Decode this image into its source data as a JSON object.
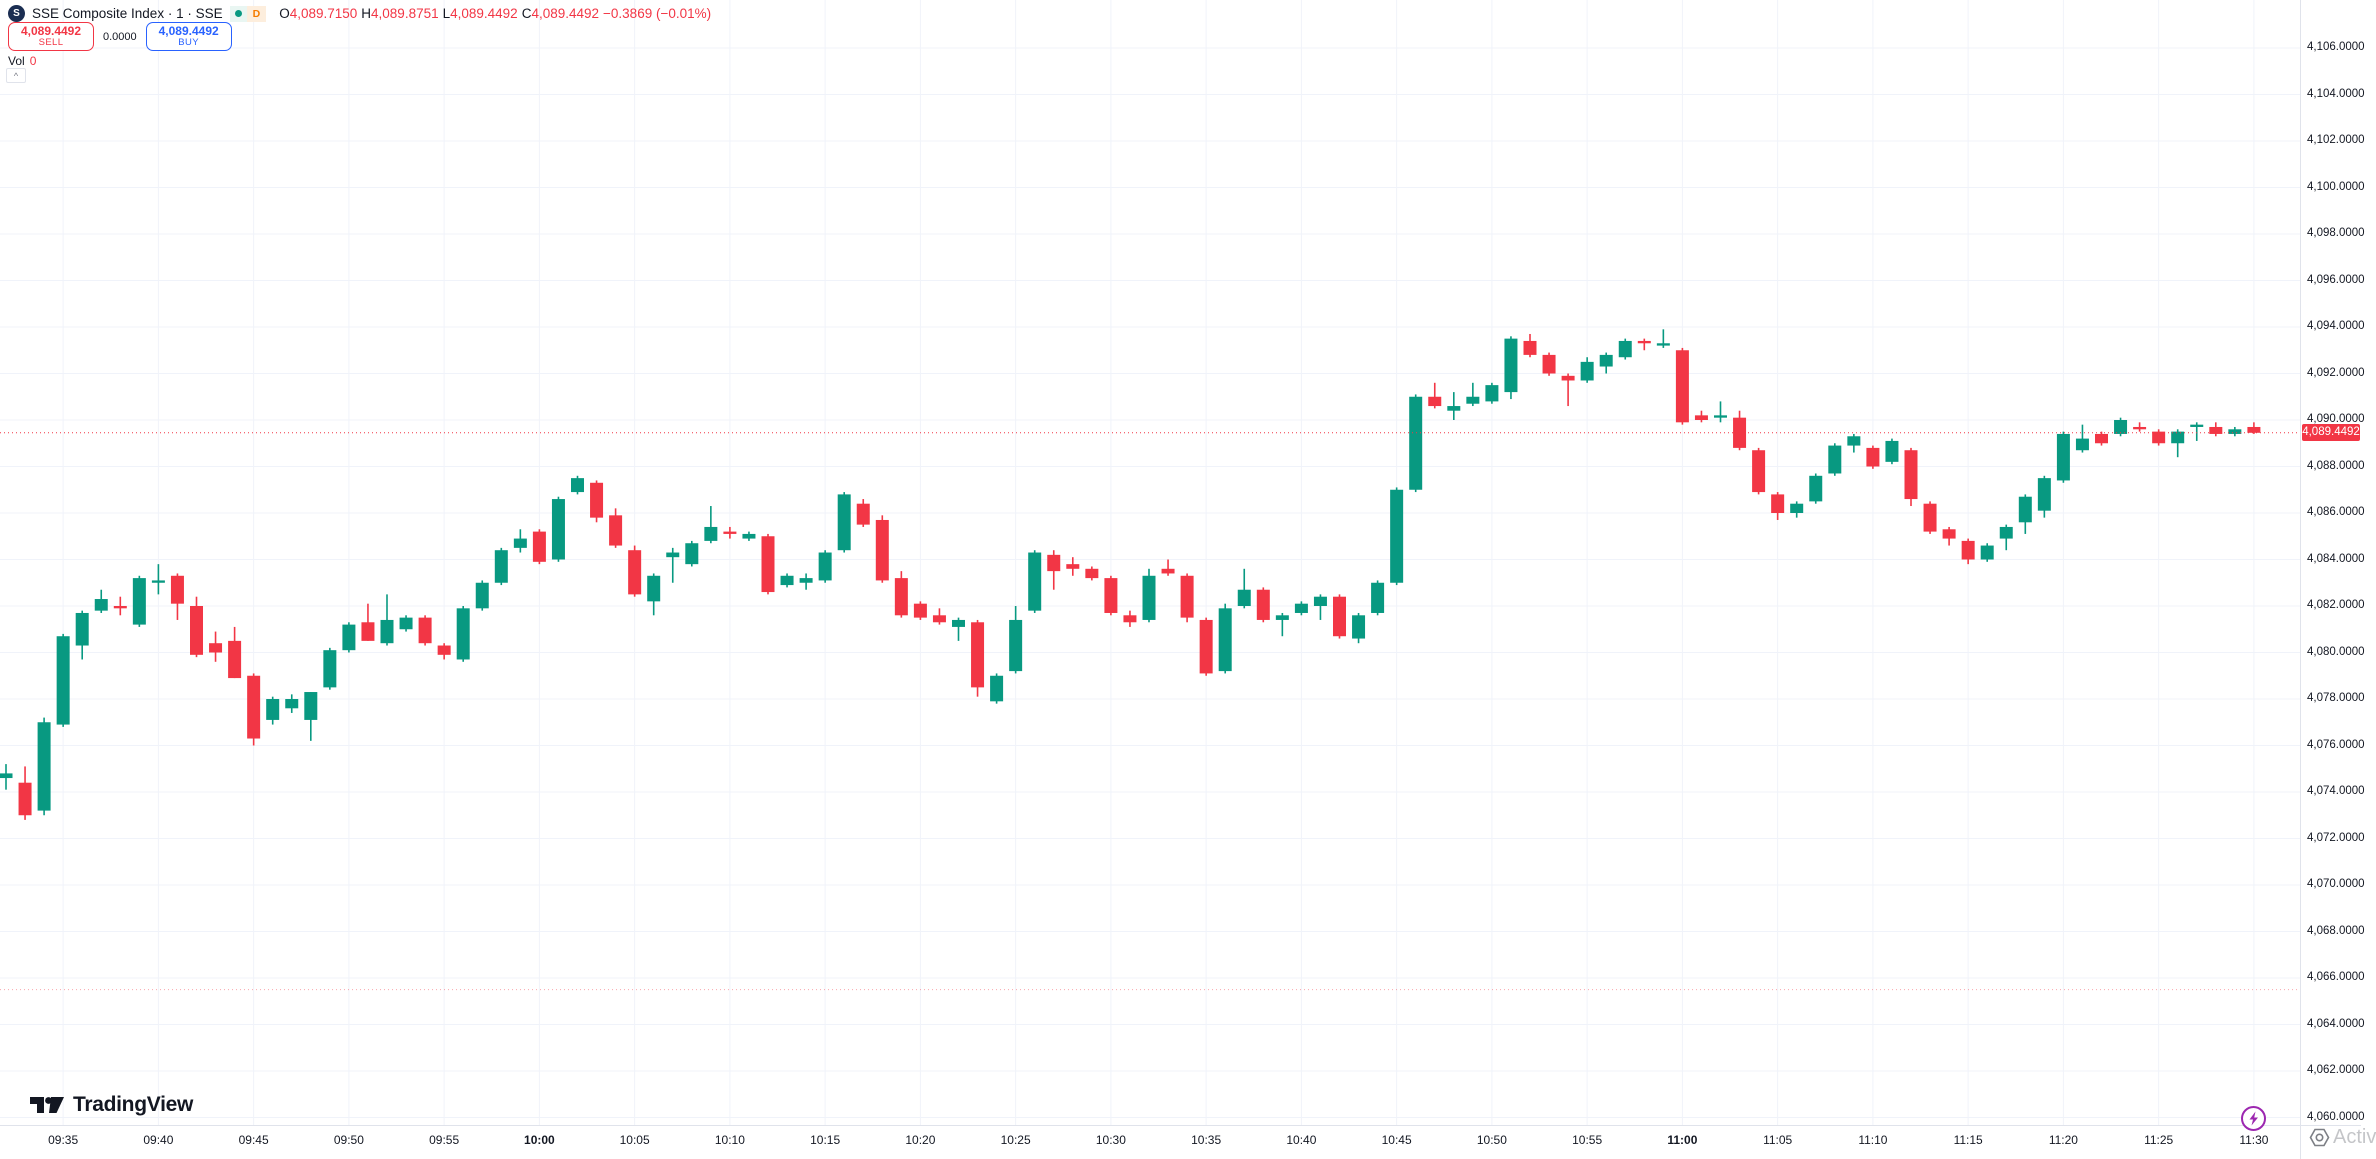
{
  "header": {
    "title": "SSE Composite Index · 1 · SSE",
    "symbol_logo_letter": "S",
    "market_status_color": "#089981",
    "data_mode_badge": "D",
    "ohlc": {
      "o_label": "O",
      "o": "4,089.7150",
      "h_label": "H",
      "h": "4,089.8751",
      "l_label": "L",
      "l": "4,089.4492",
      "c_label": "C",
      "c": "4,089.4492",
      "change": "−0.3869 (−0.01%)",
      "value_color": "#f23645"
    }
  },
  "trade_panel": {
    "sell_price": "4,089.4492",
    "sell_label": "SELL",
    "spread": "0.0000",
    "buy_price": "4,089.4492",
    "buy_label": "BUY",
    "sell_color": "#f23645",
    "buy_color": "#2962ff"
  },
  "volume": {
    "label": "Vol",
    "value": "0"
  },
  "footer": {
    "logo_text": "TradingView"
  },
  "flash_button_color": "#9c27b0",
  "watermark": {
    "text": "Activ"
  },
  "chart_data": {
    "type": "candlestick",
    "title": "SSE Composite Index",
    "interval": "1",
    "up_color": "#089981",
    "down_color": "#f23645",
    "grid_color": "#f0f3fa",
    "current_price": 4089.4492,
    "current_price_label": "4,089.4492",
    "current_price_line_color": "#f23645",
    "secondary_price_line": 4065.5,
    "y_axis": {
      "min": 4060,
      "max": 4106,
      "step": 2,
      "ticks": [
        [
          4106,
          "4,106.0000"
        ],
        [
          4104,
          "4,104.0000"
        ],
        [
          4102,
          "4,102.0000"
        ],
        [
          4100,
          "4,100.0000"
        ],
        [
          4098,
          "4,098.0000"
        ],
        [
          4096,
          "4,096.0000"
        ],
        [
          4094,
          "4,094.0000"
        ],
        [
          4092,
          "4,092.0000"
        ],
        [
          4090,
          "4,090.0000"
        ],
        [
          4088,
          "4,088.0000"
        ],
        [
          4086,
          "4,086.0000"
        ],
        [
          4084,
          "4,084.0000"
        ],
        [
          4082,
          "4,082.0000"
        ],
        [
          4080,
          "4,080.0000"
        ],
        [
          4078,
          "4,078.0000"
        ],
        [
          4076,
          "4,076.0000"
        ],
        [
          4074,
          "4,074.0000"
        ],
        [
          4072,
          "4,072.0000"
        ],
        [
          4070,
          "4,070.0000"
        ],
        [
          4068,
          "4,068.0000"
        ],
        [
          4066,
          "4,066.0000"
        ],
        [
          4064,
          "4,064.0000"
        ],
        [
          4062,
          "4,062.0000"
        ],
        [
          4060,
          "4,060.0000"
        ]
      ]
    },
    "x_axis": {
      "ticks": [
        [
          3,
          "09:35"
        ],
        [
          8,
          "09:40"
        ],
        [
          13,
          "09:45"
        ],
        [
          18,
          "09:50"
        ],
        [
          23,
          "09:55"
        ],
        [
          28,
          "10:00"
        ],
        [
          33,
          "10:05"
        ],
        [
          38,
          "10:10"
        ],
        [
          43,
          "10:15"
        ],
        [
          48,
          "10:20"
        ],
        [
          53,
          "10:25"
        ],
        [
          58,
          "10:30"
        ],
        [
          63,
          "10:35"
        ],
        [
          68,
          "10:40"
        ],
        [
          73,
          "10:45"
        ],
        [
          78,
          "10:50"
        ],
        [
          83,
          "10:55"
        ],
        [
          88,
          "11:00"
        ],
        [
          93,
          "11:05"
        ],
        [
          98,
          "11:10"
        ],
        [
          103,
          "11:15"
        ],
        [
          108,
          "11:20"
        ],
        [
          113,
          "11:25"
        ],
        [
          118,
          "11:30"
        ]
      ],
      "bold_ticks": [
        "10:00",
        "11:00"
      ]
    },
    "columns": [
      "time",
      "open",
      "high",
      "low",
      "close"
    ],
    "candles": [
      [
        "09:32",
        4074.6,
        4075.2,
        4074.1,
        4074.8
      ],
      [
        "09:33",
        4074.4,
        4075.1,
        4072.8,
        4073.0
      ],
      [
        "09:34",
        4073.2,
        4077.2,
        4073.0,
        4077.0
      ],
      [
        "09:35",
        4076.9,
        4080.8,
        4076.8,
        4080.7
      ],
      [
        "09:36",
        4080.3,
        4081.8,
        4079.7,
        4081.7
      ],
      [
        "09:37",
        4081.8,
        4082.7,
        4081.7,
        4082.3
      ],
      [
        "09:38",
        4082.0,
        4082.4,
        4081.6,
        4081.9
      ],
      [
        "09:39",
        4081.2,
        4083.3,
        4081.1,
        4083.2
      ],
      [
        "09:40",
        4083.0,
        4083.8,
        4082.5,
        4083.1
      ],
      [
        "09:41",
        4083.3,
        4083.4,
        4081.4,
        4082.1
      ],
      [
        "09:42",
        4082.0,
        4082.4,
        4079.8,
        4079.9
      ],
      [
        "09:43",
        4080.4,
        4080.9,
        4079.6,
        4080.0
      ],
      [
        "09:44",
        4080.5,
        4081.1,
        4078.9,
        4078.9
      ],
      [
        "09:45",
        4079.0,
        4079.1,
        4076.0,
        4076.3
      ],
      [
        "09:46",
        4077.1,
        4078.1,
        4076.9,
        4078.0
      ],
      [
        "09:47",
        4077.6,
        4078.2,
        4077.4,
        4078.0
      ],
      [
        "09:48",
        4077.1,
        4078.3,
        4076.2,
        4078.3
      ],
      [
        "09:49",
        4078.5,
        4080.2,
        4078.4,
        4080.1
      ],
      [
        "09:50",
        4080.1,
        4081.3,
        4080.0,
        4081.2
      ],
      [
        "09:51",
        4081.3,
        4082.1,
        4080.5,
        4080.5
      ],
      [
        "09:52",
        4080.4,
        4082.5,
        4080.3,
        4081.4
      ],
      [
        "09:53",
        4081.0,
        4081.6,
        4080.9,
        4081.5
      ],
      [
        "09:54",
        4081.5,
        4081.6,
        4080.3,
        4080.4
      ],
      [
        "09:55",
        4080.3,
        4080.4,
        4079.7,
        4079.9
      ],
      [
        "09:56",
        4079.7,
        4082.0,
        4079.6,
        4081.9
      ],
      [
        "09:57",
        4081.9,
        4083.1,
        4081.8,
        4083.0
      ],
      [
        "09:58",
        4083.0,
        4084.5,
        4082.9,
        4084.4
      ],
      [
        "09:59",
        4084.5,
        4085.3,
        4084.3,
        4084.9
      ],
      [
        "10:00",
        4085.2,
        4085.3,
        4083.8,
        4083.9
      ],
      [
        "10:01",
        4084.0,
        4086.7,
        4083.9,
        4086.6
      ],
      [
        "10:02",
        4086.9,
        4087.6,
        4086.8,
        4087.5
      ],
      [
        "10:03",
        4087.3,
        4087.4,
        4085.6,
        4085.8
      ],
      [
        "10:04",
        4085.9,
        4086.2,
        4084.5,
        4084.6
      ],
      [
        "10:05",
        4084.4,
        4084.6,
        4082.4,
        4082.5
      ],
      [
        "10:06",
        4082.2,
        4083.4,
        4081.6,
        4083.3
      ],
      [
        "10:07",
        4084.1,
        4084.5,
        4083.0,
        4084.3
      ],
      [
        "10:08",
        4083.8,
        4084.8,
        4083.7,
        4084.7
      ],
      [
        "10:09",
        4084.8,
        4086.3,
        4084.7,
        4085.4
      ],
      [
        "10:10",
        4085.2,
        4085.4,
        4084.9,
        4085.1
      ],
      [
        "10:11",
        4084.9,
        4085.2,
        4084.8,
        4085.1
      ],
      [
        "10:12",
        4085.0,
        4085.1,
        4082.5,
        4082.6
      ],
      [
        "10:13",
        4082.9,
        4083.4,
        4082.8,
        4083.3
      ],
      [
        "10:14",
        4083.0,
        4083.4,
        4082.7,
        4083.2
      ],
      [
        "10:15",
        4083.1,
        4084.4,
        4083.0,
        4084.3
      ],
      [
        "10:16",
        4084.4,
        4086.9,
        4084.3,
        4086.8
      ],
      [
        "10:17",
        4086.4,
        4086.6,
        4085.4,
        4085.5
      ],
      [
        "10:18",
        4085.7,
        4085.9,
        4083.0,
        4083.1
      ],
      [
        "10:19",
        4083.2,
        4083.5,
        4081.5,
        4081.6
      ],
      [
        "10:20",
        4082.1,
        4082.2,
        4081.4,
        4081.5
      ],
      [
        "10:21",
        4081.6,
        4081.9,
        4081.2,
        4081.3
      ],
      [
        "10:22",
        4081.1,
        4081.5,
        4080.5,
        4081.4
      ],
      [
        "10:23",
        4081.3,
        4081.4,
        4078.1,
        4078.5
      ],
      [
        "10:24",
        4077.9,
        4079.1,
        4077.8,
        4079.0
      ],
      [
        "10:25",
        4079.2,
        4082.0,
        4079.1,
        4081.4
      ],
      [
        "10:26",
        4081.8,
        4084.4,
        4081.7,
        4084.3
      ],
      [
        "10:27",
        4084.2,
        4084.4,
        4082.7,
        4083.5
      ],
      [
        "10:28",
        4083.8,
        4084.1,
        4083.3,
        4083.6
      ],
      [
        "10:29",
        4083.6,
        4083.7,
        4083.1,
        4083.2
      ],
      [
        "10:30",
        4083.2,
        4083.3,
        4081.6,
        4081.7
      ],
      [
        "10:31",
        4081.6,
        4081.8,
        4081.1,
        4081.3
      ],
      [
        "10:32",
        4081.4,
        4083.6,
        4081.3,
        4083.3
      ],
      [
        "10:33",
        4083.6,
        4084.0,
        4083.3,
        4083.4
      ],
      [
        "10:34",
        4083.3,
        4083.4,
        4081.3,
        4081.5
      ],
      [
        "10:35",
        4081.4,
        4081.5,
        4079.0,
        4079.1
      ],
      [
        "10:36",
        4079.2,
        4082.1,
        4079.1,
        4081.9
      ],
      [
        "10:37",
        4082.0,
        4083.6,
        4081.9,
        4082.7
      ],
      [
        "10:38",
        4082.7,
        4082.8,
        4081.3,
        4081.4
      ],
      [
        "10:39",
        4081.4,
        4081.7,
        4080.7,
        4081.6
      ],
      [
        "10:40",
        4081.7,
        4082.2,
        4081.6,
        4082.1
      ],
      [
        "10:41",
        4082.0,
        4082.5,
        4081.4,
        4082.4
      ],
      [
        "10:42",
        4082.4,
        4082.5,
        4080.6,
        4080.7
      ],
      [
        "10:43",
        4080.6,
        4081.7,
        4080.4,
        4081.6
      ],
      [
        "10:44",
        4081.7,
        4083.1,
        4081.6,
        4083.0
      ],
      [
        "10:45",
        4083.0,
        4087.1,
        4082.9,
        4087.0
      ],
      [
        "10:46",
        4087.0,
        4091.1,
        4086.9,
        4091.0
      ],
      [
        "10:47",
        4091.0,
        4091.6,
        4090.5,
        4090.6
      ],
      [
        "10:48",
        4090.4,
        4091.2,
        4090.0,
        4090.6
      ],
      [
        "10:49",
        4090.7,
        4091.6,
        4090.6,
        4091.0
      ],
      [
        "10:50",
        4090.8,
        4091.6,
        4090.7,
        4091.5
      ],
      [
        "10:51",
        4091.2,
        4093.6,
        4090.9,
        4093.5
      ],
      [
        "10:52",
        4093.4,
        4093.7,
        4092.7,
        4092.8
      ],
      [
        "10:53",
        4092.8,
        4092.9,
        4091.9,
        4092.0
      ],
      [
        "10:54",
        4091.9,
        4092.0,
        4090.6,
        4091.7
      ],
      [
        "10:55",
        4091.7,
        4092.7,
        4091.6,
        4092.5
      ],
      [
        "10:56",
        4092.3,
        4092.9,
        4092.0,
        4092.8
      ],
      [
        "10:57",
        4092.7,
        4093.5,
        4092.6,
        4093.4
      ],
      [
        "10:58",
        4093.4,
        4093.5,
        4093.0,
        4093.3
      ],
      [
        "10:59",
        4093.2,
        4093.9,
        4093.1,
        4093.3
      ],
      [
        "11:00",
        4093.0,
        4093.1,
        4089.8,
        4089.9
      ],
      [
        "11:01",
        4090.2,
        4090.4,
        4089.9,
        4090.0
      ],
      [
        "11:02",
        4090.1,
        4090.8,
        4089.9,
        4090.2
      ],
      [
        "11:03",
        4090.1,
        4090.4,
        4088.7,
        4088.8
      ],
      [
        "11:04",
        4088.7,
        4088.8,
        4086.8,
        4086.9
      ],
      [
        "11:05",
        4086.8,
        4086.9,
        4085.7,
        4086.0
      ],
      [
        "11:06",
        4086.0,
        4086.5,
        4085.8,
        4086.4
      ],
      [
        "11:07",
        4086.5,
        4087.7,
        4086.4,
        4087.6
      ],
      [
        "11:08",
        4087.7,
        4089.0,
        4087.6,
        4088.9
      ],
      [
        "11:09",
        4088.9,
        4089.4,
        4088.6,
        4089.3
      ],
      [
        "11:10",
        4088.8,
        4088.9,
        4087.9,
        4088.0
      ],
      [
        "11:11",
        4088.2,
        4089.2,
        4088.1,
        4089.1
      ],
      [
        "11:12",
        4088.7,
        4088.8,
        4086.3,
        4086.6
      ],
      [
        "11:13",
        4086.4,
        4086.5,
        4085.1,
        4085.2
      ],
      [
        "11:14",
        4085.3,
        4085.4,
        4084.6,
        4084.9
      ],
      [
        "11:15",
        4084.8,
        4084.9,
        4083.8,
        4084.0
      ],
      [
        "11:16",
        4084.0,
        4084.7,
        4083.9,
        4084.6
      ],
      [
        "11:17",
        4084.9,
        4085.5,
        4084.4,
        4085.4
      ],
      [
        "11:18",
        4085.6,
        4086.8,
        4085.1,
        4086.7
      ],
      [
        "11:19",
        4086.1,
        4087.6,
        4085.8,
        4087.5
      ],
      [
        "11:20",
        4087.4,
        4089.5,
        4087.3,
        4089.4
      ],
      [
        "11:21",
        4088.7,
        4089.8,
        4088.6,
        4089.2
      ],
      [
        "11:22",
        4089.4,
        4089.5,
        4088.9,
        4089.0
      ],
      [
        "11:23",
        4089.4,
        4090.1,
        4089.3,
        4090.0
      ],
      [
        "11:24",
        4089.7,
        4089.9,
        4089.5,
        4089.6
      ],
      [
        "11:25",
        4089.5,
        4089.6,
        4088.9,
        4089.0
      ],
      [
        "11:26",
        4089.0,
        4089.6,
        4088.4,
        4089.5
      ],
      [
        "11:27",
        4089.7,
        4089.9,
        4089.1,
        4089.8
      ],
      [
        "11:28",
        4089.7,
        4089.9,
        4089.3,
        4089.4
      ],
      [
        "11:29",
        4089.4,
        4089.7,
        4089.3,
        4089.6
      ],
      [
        "11:30",
        4089.7,
        4089.9,
        4089.4,
        4089.45
      ]
    ]
  }
}
